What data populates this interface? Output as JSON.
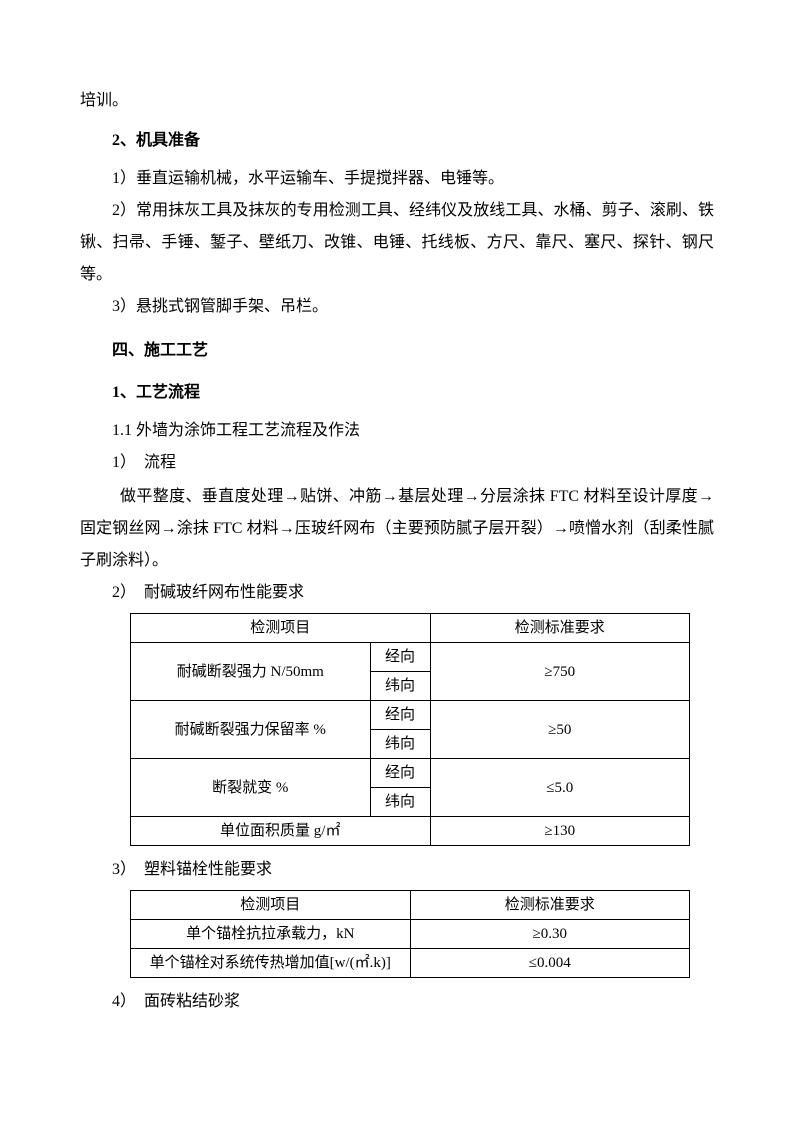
{
  "prefix_text": "培训。",
  "heading_2": "2、机具准备",
  "item_2_1": "1）垂直运输机械，水平运输车、手提搅拌器、电锤等。",
  "item_2_2": "2）常用抹灰工具及抹灰的专用检测工具、经纬仪及放线工具、水桶、剪子、滚刷、铁锹、扫帚、手锤、錾子、壁纸刀、改锥、电锤、托线板、方尺、靠尺、塞尺、探针、钢尺等。",
  "item_2_3": "3）悬挑式钢管脚手架、吊栏。",
  "heading_4": "四、施工工艺",
  "heading_4_1": "1、工艺流程",
  "sub_1_1": "1.1 外墙为涂饰工程工艺流程及作法",
  "flow_1_label": "1）　流程",
  "flow_text": "做平整度、垂直度处理→贴饼、冲筋→基层处理→分层涂抹 FTC 材料至设计厚度→固定钢丝网→涂抹 FTC 材料→压玻纤网布（主要预防腻子层开裂）→喷憎水剂（刮柔性腻子刷涂料）。",
  "table1_label": "2）　耐碱玻纤网布性能要求",
  "table1": {
    "header_1": "检测项目",
    "header_2": "检测标准要求",
    "row1_item": "耐碱断裂强力 N/50mm",
    "row1_dir1": "经向",
    "row1_dir2": "纬向",
    "row1_val": "≥750",
    "row2_item": "耐碱断裂强力保留率 %",
    "row2_dir1": "经向",
    "row2_dir2": "纬向",
    "row2_val": "≥50",
    "row3_item": "断裂就变 %",
    "row3_dir1": "经向",
    "row3_dir2": "纬向",
    "row3_val": "≤5.0",
    "row4_item": "单位面积质量 g/㎡",
    "row4_val": "≥130"
  },
  "table2_label": "3）　塑料锚栓性能要求",
  "table2": {
    "header_1": "检测项目",
    "header_2": "检测标准要求",
    "row1_item": "单个锚栓抗拉承载力，kN",
    "row1_val": "≥0.30",
    "row2_item": "单个锚栓对系统传热增加值[w/(㎡.k)]",
    "row2_val": "≤0.004"
  },
  "item_4_label": "4）　面砖粘结砂浆"
}
